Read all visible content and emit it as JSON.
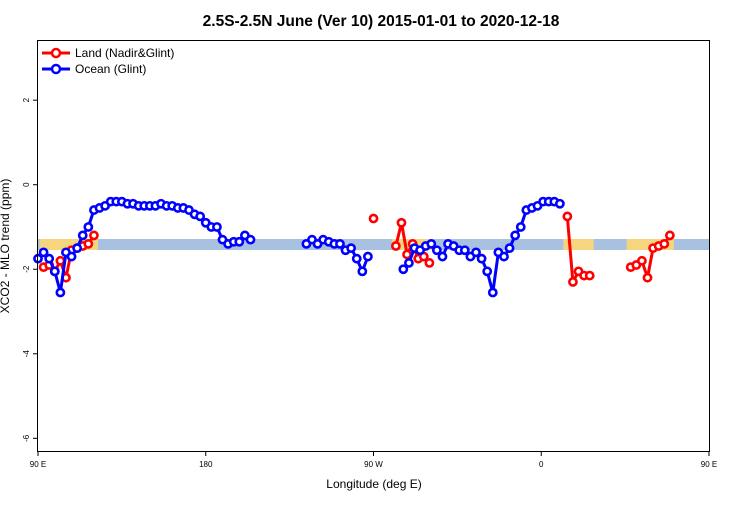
{
  "chart_data": {
    "type": "line",
    "title": "2.5S-2.5N June (Ver 10)   2015-01-01 to 2020-12-18",
    "xlabel": "Longitude (deg E)",
    "ylabel": "XCO2 - MLO trend (ppm)",
    "xlim": [
      90,
      450
    ],
    "ylim": [
      -6.3,
      3.4
    ],
    "x_ticks": [
      {
        "value": 90,
        "label": "90 E"
      },
      {
        "value": 180,
        "label": "180"
      },
      {
        "value": 270,
        "label": "90 W"
      },
      {
        "value": 360,
        "label": "0"
      },
      {
        "value": 450,
        "label": "90 E"
      },
      {
        "value": 540,
        "label": "180"
      }
    ],
    "y_ticks": [
      {
        "value": 2,
        "label": "2"
      },
      {
        "value": 0,
        "label": "0"
      },
      {
        "value": -2,
        "label": "-2"
      },
      {
        "value": -4,
        "label": "-4"
      },
      {
        "value": -6,
        "label": "-6"
      }
    ],
    "legend": {
      "position": "top-left"
    },
    "series": [
      {
        "name": "Land (Nadir&Glint)",
        "color": "#ff0000",
        "segments": [
          [
            [
              93,
              -1.95
            ],
            [
              96,
              -1.9
            ],
            [
              99,
              -2.05
            ],
            [
              102,
              -1.8
            ],
            [
              105,
              -2.2
            ],
            [
              108,
              -1.55
            ],
            [
              111,
              -1.5
            ],
            [
              114,
              -1.45
            ],
            [
              117,
              -1.4
            ],
            [
              120,
              -1.2
            ]
          ],
          [
            [
              270,
              -0.8
            ]
          ],
          [
            [
              282,
              -1.45
            ],
            [
              285,
              -0.9
            ],
            [
              288,
              -1.65
            ],
            [
              291,
              -1.4
            ],
            [
              294,
              -1.75
            ],
            [
              297,
              -1.7
            ],
            [
              300,
              -1.85
            ]
          ],
          [
            [
              374,
              -0.75
            ],
            [
              377,
              -2.3
            ],
            [
              380,
              -2.05
            ],
            [
              383,
              -2.15
            ],
            [
              386,
              -2.15
            ]
          ],
          [
            [
              408,
              -1.95
            ],
            [
              411,
              -1.9
            ],
            [
              414,
              -1.8
            ],
            [
              417,
              -2.2
            ],
            [
              420,
              -1.5
            ],
            [
              423,
              -1.45
            ],
            [
              426,
              -1.4
            ],
            [
              429,
              -1.2
            ]
          ]
        ]
      },
      {
        "name": "Ocean (Glint)",
        "color": "#0000ff",
        "segments": [
          [
            [
              90,
              -1.75
            ],
            [
              93,
              -1.6
            ],
            [
              96,
              -1.75
            ],
            [
              99,
              -2.05
            ],
            [
              102,
              -2.55
            ],
            [
              105,
              -1.6
            ],
            [
              108,
              -1.7
            ],
            [
              111,
              -1.5
            ],
            [
              114,
              -1.2
            ],
            [
              117,
              -1.0
            ],
            [
              120,
              -0.6
            ],
            [
              123,
              -0.55
            ],
            [
              126,
              -0.5
            ],
            [
              129,
              -0.4
            ],
            [
              132,
              -0.4
            ],
            [
              135,
              -0.4
            ],
            [
              138,
              -0.45
            ],
            [
              141,
              -0.45
            ],
            [
              144,
              -0.5
            ],
            [
              147,
              -0.5
            ],
            [
              150,
              -0.5
            ],
            [
              153,
              -0.5
            ],
            [
              156,
              -0.45
            ],
            [
              159,
              -0.5
            ],
            [
              162,
              -0.5
            ],
            [
              165,
              -0.55
            ],
            [
              168,
              -0.55
            ],
            [
              171,
              -0.6
            ],
            [
              174,
              -0.7
            ],
            [
              177,
              -0.75
            ],
            [
              180,
              -0.9
            ],
            [
              183,
              -1.0
            ],
            [
              186,
              -1.0
            ],
            [
              189,
              -1.3
            ],
            [
              192,
              -1.4
            ],
            [
              195,
              -1.35
            ],
            [
              198,
              -1.35
            ],
            [
              201,
              -1.2
            ],
            [
              204,
              -1.3
            ]
          ],
          [
            [
              234,
              -1.4
            ],
            [
              237,
              -1.3
            ],
            [
              240,
              -1.4
            ],
            [
              243,
              -1.3
            ],
            [
              246,
              -1.35
            ],
            [
              249,
              -1.4
            ],
            [
              252,
              -1.4
            ],
            [
              255,
              -1.55
            ],
            [
              258,
              -1.5
            ],
            [
              261,
              -1.75
            ],
            [
              264,
              -2.05
            ],
            [
              267,
              -1.7
            ]
          ],
          [
            [
              286,
              -2.0
            ],
            [
              289,
              -1.85
            ],
            [
              292,
              -1.5
            ],
            [
              295,
              -1.55
            ],
            [
              298,
              -1.45
            ],
            [
              301,
              -1.4
            ],
            [
              304,
              -1.55
            ],
            [
              307,
              -1.7
            ],
            [
              310,
              -1.4
            ],
            [
              313,
              -1.45
            ],
            [
              316,
              -1.55
            ],
            [
              319,
              -1.55
            ],
            [
              322,
              -1.7
            ],
            [
              325,
              -1.6
            ],
            [
              328,
              -1.75
            ],
            [
              331,
              -2.05
            ],
            [
              334,
              -2.55
            ],
            [
              337,
              -1.6
            ],
            [
              340,
              -1.7
            ],
            [
              343,
              -1.5
            ],
            [
              346,
              -1.2
            ],
            [
              349,
              -1.0
            ],
            [
              352,
              -0.6
            ],
            [
              355,
              -0.55
            ],
            [
              358,
              -0.5
            ],
            [
              361,
              -0.4
            ],
            [
              364,
              -0.4
            ],
            [
              367,
              -0.4
            ],
            [
              370,
              -0.45
            ]
          ]
        ]
      }
    ]
  }
}
